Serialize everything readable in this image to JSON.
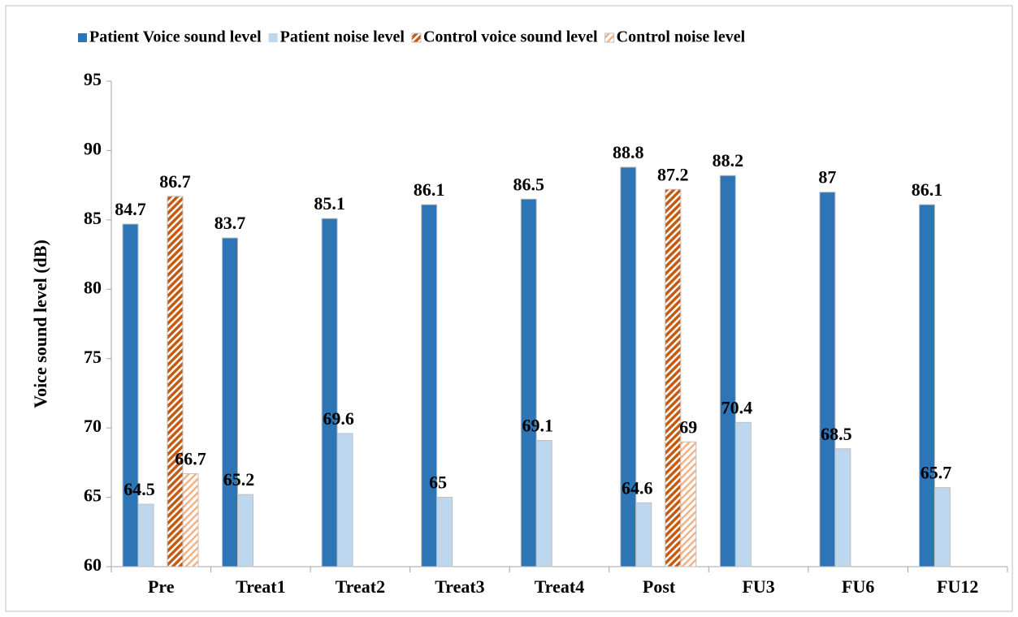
{
  "chart_data": {
    "type": "bar",
    "y_label": "Voice sound level (dB)",
    "categories": [
      "Pre",
      "Treat1",
      "Treat2",
      "Treat3",
      "Treat4",
      "Post",
      "FU3",
      "FU6",
      "FU12"
    ],
    "series": [
      {
        "name": "Patient Voice sound level",
        "color": "#2e75b6",
        "values": [
          84.7,
          83.7,
          85.1,
          86.1,
          86.5,
          88.8,
          88.2,
          87,
          86.1
        ]
      },
      {
        "name": "Patient noise level",
        "color": "#bdd7ee",
        "values": [
          64.5,
          65.2,
          69.6,
          65,
          69.1,
          64.6,
          70.4,
          68.5,
          65.7
        ]
      },
      {
        "name": "Control voice sound level",
        "color": "#c55a11",
        "hatched": true,
        "values": [
          86.7,
          null,
          null,
          null,
          null,
          87.2,
          null,
          null,
          null
        ]
      },
      {
        "name": "Control noise level",
        "color": "#f4b183",
        "hatched": true,
        "values": [
          66.7,
          null,
          null,
          null,
          null,
          69,
          null,
          null,
          null
        ]
      }
    ],
    "ylim": [
      60,
      95
    ],
    "yticks": [
      60,
      65,
      70,
      75,
      80,
      85,
      90,
      95
    ],
    "legend": "top"
  }
}
